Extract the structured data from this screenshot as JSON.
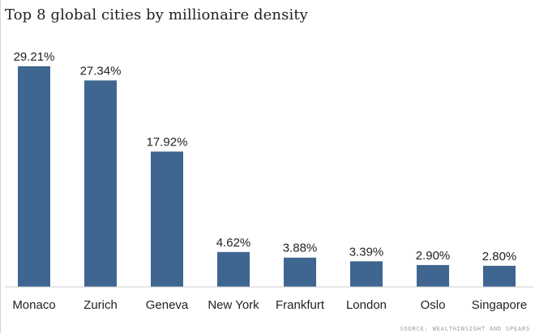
{
  "chart_data": {
    "type": "bar",
    "title": "Top 8 global cities by millionaire density",
    "categories": [
      "Monaco",
      "Zurich",
      "Geneva",
      "New York",
      "Frankfurt",
      "London",
      "Oslo",
      "Singapore"
    ],
    "values": [
      29.21,
      27.34,
      17.92,
      4.62,
      3.88,
      3.39,
      2.9,
      2.8
    ],
    "value_labels": [
      "29.21%",
      "27.34%",
      "17.92%",
      "4.62%",
      "3.88%",
      "3.39%",
      "2.90%",
      "2.80%"
    ],
    "xlabel": "",
    "ylabel": "",
    "ylim": [
      0,
      30
    ],
    "grid": false,
    "bar_color": "#3f6690",
    "source": "SOURCE: WEALTHINSIGHT AND SPEARS"
  }
}
